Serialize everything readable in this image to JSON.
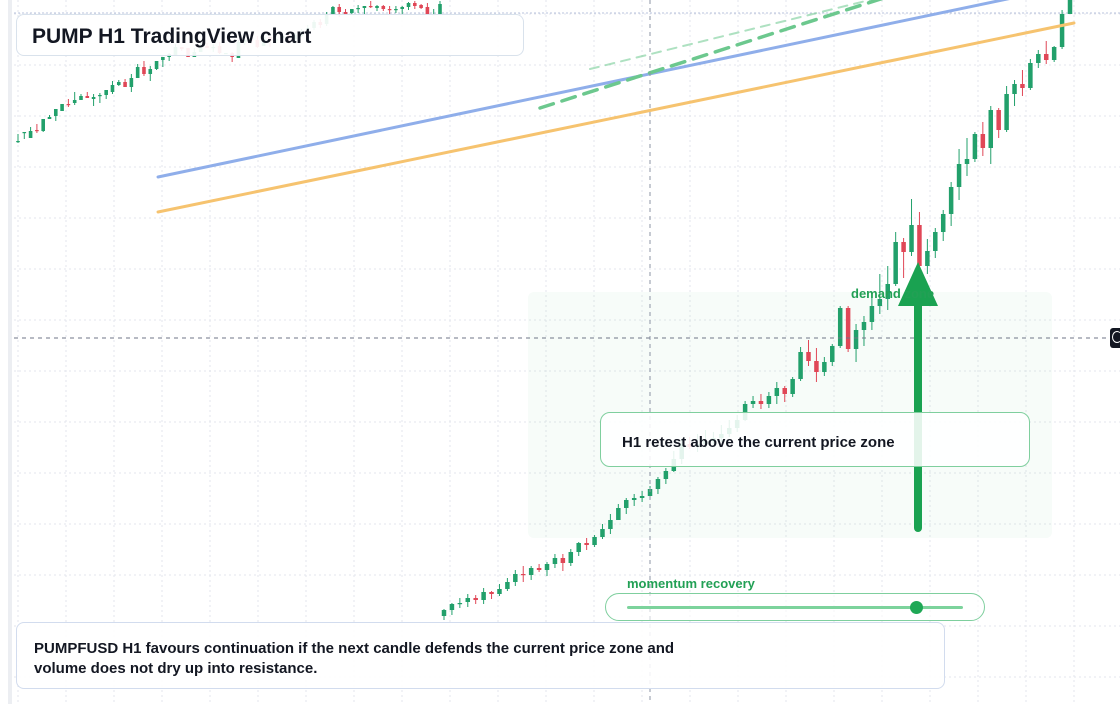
{
  "title": "PUMP H1 TradingView chart",
  "retest_label": "H1 retest above the current price zone",
  "demand_label": "demand zone",
  "momentum_label": "momentum recovery",
  "momentum_level": 0.86,
  "commentary": "PUMPFUSD H1 favours continuation if the next candle defends the current price zone and volume does not dry up into resistance.",
  "icons": {
    "crosshair": "crosshair-target-icon"
  },
  "colors": {
    "bull": "#22a06b",
    "bear": "#e04757",
    "ma_fast": "#f6c36f",
    "ma_slow": "#8faeea",
    "accent_green": "#1aa251",
    "trend_dash": "#6cc88e",
    "grid": "#e3e6ec"
  },
  "chart_data": {
    "type": "candlestick",
    "symbol": "PUMPFUSD",
    "timeframe": "H1",
    "ylim": [
      0.0,
      7.04
    ],
    "candles": [
      [
        5.63,
        5.63,
        5.61,
        5.7
      ],
      [
        5.72,
        5.72,
        5.65,
        5.72
      ],
      [
        5.66,
        5.73,
        5.66,
        5.77
      ],
      [
        5.74,
        5.73,
        5.71,
        5.8
      ],
      [
        5.73,
        5.85,
        5.72,
        5.85
      ],
      [
        5.85,
        5.87,
        5.85,
        5.89
      ],
      [
        5.88,
        5.95,
        5.83,
        5.95
      ],
      [
        5.93,
        6.0,
        5.93,
        6.0
      ],
      [
        6.0,
        5.99,
        5.97,
        6.05
      ],
      [
        6.01,
        6.04,
        5.99,
        6.12
      ],
      [
        6.04,
        6.08,
        6.04,
        6.1
      ],
      [
        6.08,
        6.06,
        6.06,
        6.12
      ],
      [
        6.05,
        6.07,
        5.98,
        6.1
      ],
      [
        6.08,
        6.09,
        6.01,
        6.11
      ],
      [
        6.09,
        6.14,
        6.05,
        6.14
      ],
      [
        6.12,
        6.19,
        6.1,
        6.23
      ],
      [
        6.19,
        6.22,
        6.18,
        6.24
      ],
      [
        6.22,
        6.17,
        6.17,
        6.25
      ],
      [
        6.17,
        6.26,
        6.12,
        6.3
      ],
      [
        6.26,
        6.37,
        6.26,
        6.4
      ],
      [
        6.37,
        6.3,
        6.28,
        6.43
      ],
      [
        6.3,
        6.35,
        6.23,
        6.38
      ],
      [
        6.35,
        6.43,
        6.34,
        6.43
      ],
      [
        6.44,
        6.47,
        6.37,
        6.47
      ],
      [
        6.47,
        6.5,
        6.43,
        6.51
      ],
      [
        6.49,
        6.57,
        6.49,
        6.6
      ],
      [
        6.57,
        6.55,
        6.53,
        6.57
      ],
      [
        6.56,
        6.47,
        6.47,
        6.56
      ],
      [
        6.47,
        6.52,
        6.47,
        6.56
      ],
      [
        6.52,
        6.59,
        6.52,
        6.61
      ],
      [
        6.58,
        6.56,
        6.56,
        6.61
      ],
      [
        6.56,
        6.57,
        6.52,
        6.6
      ],
      [
        6.58,
        6.51,
        6.5,
        6.62
      ],
      [
        6.51,
        6.51,
        6.51,
        6.51
      ],
      [
        6.51,
        6.47,
        6.42,
        6.52
      ],
      [
        6.46,
        6.62,
        6.46,
        6.64
      ],
      [
        6.62,
        6.64,
        6.59,
        6.64
      ],
      [
        6.64,
        6.63,
        6.6,
        6.64
      ],
      [
        6.64,
        6.57,
        6.56,
        6.68
      ],
      [
        6.58,
        6.67,
        6.58,
        6.68
      ],
      [
        6.67,
        6.63,
        6.57,
        6.67
      ],
      [
        6.64,
        6.65,
        6.61,
        6.68
      ],
      [
        6.66,
        6.68,
        6.63,
        6.69
      ],
      [
        6.69,
        6.64,
        6.6,
        6.69
      ],
      [
        6.65,
        6.69,
        6.6,
        6.71
      ],
      [
        6.68,
        6.72,
        6.67,
        6.75
      ],
      [
        6.72,
        6.76,
        6.72,
        6.79
      ],
      [
        6.76,
        6.82,
        6.74,
        6.84
      ],
      [
        6.82,
        6.79,
        6.76,
        6.85
      ],
      [
        6.8,
        6.9,
        6.78,
        6.92
      ],
      [
        6.89,
        6.97,
        6.89,
        6.98
      ],
      [
        6.97,
        6.92,
        6.87,
        7.0
      ],
      [
        6.92,
        6.9,
        6.9,
        6.95
      ],
      [
        6.91,
        6.95,
        6.9,
        6.95
      ],
      [
        6.95,
        6.96,
        6.91,
        6.99
      ],
      [
        6.96,
        6.98,
        6.9,
        6.98
      ],
      [
        6.98,
        6.97,
        6.96,
        7.03
      ],
      [
        6.96,
        6.98,
        6.93,
        6.99
      ],
      [
        6.98,
        6.95,
        6.93,
        6.99
      ],
      [
        6.95,
        6.94,
        6.9,
        6.98
      ],
      [
        6.94,
        6.95,
        6.91,
        6.98
      ],
      [
        6.95,
        6.97,
        6.9,
        6.98
      ],
      [
        6.97,
        7.01,
        6.94,
        7.02
      ],
      [
        7.01,
        6.98,
        6.95,
        7.03
      ],
      [
        6.99,
        6.96,
        6.95,
        7.0
      ],
      [
        6.97,
        6.9,
        6.89,
        7.01
      ],
      [
        6.89,
        6.9,
        6.89,
        6.95
      ],
      [
        6.89,
        7.0,
        6.89,
        7.03
      ]
    ],
    "continuation": [
      [
        0.88,
        0.94,
        0.84,
        0.95
      ],
      [
        0.94,
        1.0,
        0.89,
        1.01
      ],
      [
        1.0,
        1.01,
        0.96,
        1.06
      ],
      [
        1.02,
        1.06,
        0.97,
        1.1
      ],
      [
        1.06,
        1.04,
        1.0,
        1.09
      ],
      [
        1.04,
        1.12,
        1.0,
        1.16
      ],
      [
        1.12,
        1.1,
        1.05,
        1.13
      ],
      [
        1.1,
        1.15,
        1.08,
        1.2
      ],
      [
        1.15,
        1.22,
        1.13,
        1.26
      ],
      [
        1.22,
        1.3,
        1.18,
        1.34
      ],
      [
        1.3,
        1.29,
        1.22,
        1.38
      ],
      [
        1.29,
        1.36,
        1.24,
        1.38
      ],
      [
        1.36,
        1.34,
        1.32,
        1.4
      ],
      [
        1.34,
        1.4,
        1.28,
        1.42
      ],
      [
        1.4,
        1.46,
        1.36,
        1.5
      ],
      [
        1.46,
        1.41,
        1.33,
        1.5
      ],
      [
        1.41,
        1.52,
        1.38,
        1.55
      ],
      [
        1.52,
        1.61,
        1.48,
        1.62
      ],
      [
        1.61,
        1.59,
        1.54,
        1.66
      ],
      [
        1.59,
        1.67,
        1.57,
        1.69
      ],
      [
        1.67,
        1.75,
        1.65,
        1.8
      ],
      [
        1.75,
        1.84,
        1.7,
        1.9
      ],
      [
        1.84,
        1.96,
        1.84,
        2.0
      ],
      [
        1.96,
        2.04,
        1.9,
        2.06
      ],
      [
        2.04,
        2.06,
        1.98,
        2.1
      ],
      [
        2.06,
        2.08,
        2.02,
        2.13
      ],
      [
        2.08,
        2.15,
        2.05,
        2.18
      ],
      [
        2.15,
        2.25,
        2.1,
        2.27
      ],
      [
        2.25,
        2.33,
        2.2,
        2.36
      ],
      [
        2.33,
        2.45,
        2.32,
        2.53
      ],
      [
        2.45,
        2.6,
        2.4,
        2.65
      ],
      [
        2.6,
        2.57,
        2.55,
        2.67
      ],
      [
        2.57,
        2.6,
        2.52,
        2.7
      ],
      [
        2.6,
        2.63,
        2.56,
        2.74
      ],
      [
        2.63,
        2.66,
        2.6,
        2.72
      ],
      [
        2.66,
        2.7,
        2.62,
        2.79
      ],
      [
        2.7,
        2.76,
        2.67,
        2.84
      ],
      [
        2.76,
        2.84,
        2.72,
        2.89
      ],
      [
        2.84,
        3.0,
        2.83,
        3.03
      ],
      [
        3.0,
        3.03,
        2.96,
        3.08
      ],
      [
        3.03,
        3.0,
        2.95,
        3.1
      ],
      [
        3.0,
        3.08,
        2.96,
        3.12
      ],
      [
        3.08,
        3.16,
        3.0,
        3.22
      ],
      [
        3.16,
        3.1,
        3.02,
        3.18
      ],
      [
        3.1,
        3.25,
        3.07,
        3.27
      ],
      [
        3.25,
        3.52,
        3.23,
        3.57
      ],
      [
        3.52,
        3.43,
        3.38,
        3.64
      ],
      [
        3.43,
        3.32,
        3.22,
        3.56
      ],
      [
        3.32,
        3.42,
        3.28,
        3.47
      ],
      [
        3.42,
        3.58,
        3.38,
        3.6
      ],
      [
        3.58,
        3.96,
        3.56,
        3.98
      ],
      [
        3.96,
        3.55,
        3.52,
        3.98
      ],
      [
        3.55,
        3.74,
        3.42,
        3.8
      ],
      [
        3.74,
        3.82,
        3.58,
        3.88
      ],
      [
        3.82,
        3.98,
        3.74,
        4.12
      ],
      [
        3.98,
        4.05,
        3.9,
        4.3
      ],
      [
        4.05,
        4.2,
        3.94,
        4.38
      ],
      [
        4.2,
        4.62,
        4.18,
        4.72
      ],
      [
        4.62,
        4.52,
        4.26,
        4.66
      ],
      [
        4.52,
        4.79,
        4.48,
        5.05
      ],
      [
        4.79,
        4.38,
        4.36,
        4.92
      ],
      [
        4.38,
        4.53,
        4.3,
        4.65
      ],
      [
        4.53,
        4.72,
        4.46,
        4.76
      ],
      [
        4.72,
        4.9,
        4.63,
        4.94
      ],
      [
        4.9,
        5.17,
        4.78,
        5.22
      ],
      [
        5.17,
        5.4,
        5.04,
        5.55
      ],
      [
        5.4,
        5.45,
        5.28,
        5.66
      ],
      [
        5.45,
        5.7,
        5.42,
        5.72
      ],
      [
        5.7,
        5.56,
        5.48,
        5.82
      ],
      [
        5.56,
        5.94,
        5.4,
        5.98
      ],
      [
        5.94,
        5.74,
        5.66,
        5.96
      ],
      [
        5.74,
        6.1,
        5.72,
        6.18
      ],
      [
        6.1,
        6.2,
        5.98,
        6.24
      ],
      [
        6.2,
        6.16,
        6.08,
        6.34
      ],
      [
        6.16,
        6.41,
        6.14,
        6.45
      ],
      [
        6.41,
        6.5,
        6.36,
        6.54
      ],
      [
        6.5,
        6.44,
        6.4,
        6.63
      ],
      [
        6.44,
        6.57,
        6.42,
        6.58
      ],
      [
        6.57,
        6.9,
        6.55,
        6.94
      ],
      [
        6.9,
        7.04,
        6.9,
        7.04
      ]
    ],
    "ma_fast": [
      [
        0.0,
        4.92
      ],
      [
        1.0,
        6.81
      ]
    ],
    "ma_slow": [
      [
        0.0,
        5.27
      ],
      [
        1.0,
        7.19
      ]
    ],
    "trendline": [
      [
        0.0,
        5.96
      ],
      [
        1.0,
        7.58
      ]
    ],
    "trendline_lower": [
      [
        0.0,
        6.35
      ],
      [
        1.0,
        7.48
      ]
    ]
  }
}
